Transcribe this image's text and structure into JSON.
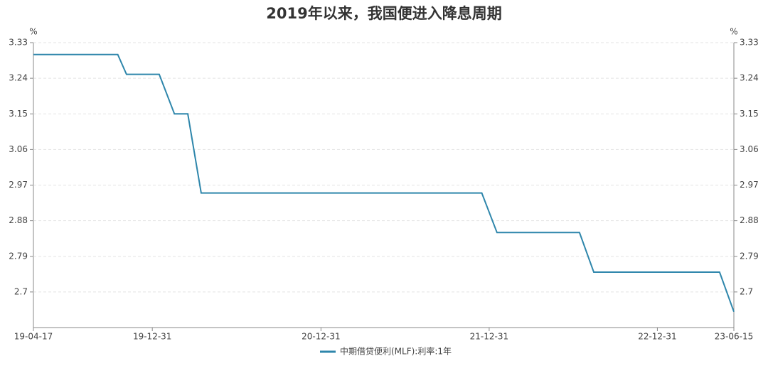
{
  "chart_data": {
    "type": "line",
    "title": "2019年以来，我国便进入降息周期",
    "y_label": "%",
    "y2_label": "%",
    "x": [
      "2019-04-17",
      "2019-10-17",
      "2019-11-05",
      "2020-01-15",
      "2020-02-17",
      "2020-03-17",
      "2020-04-15",
      "2021-12-15",
      "2022-01-17",
      "2022-07-15",
      "2022-08-15",
      "2023-05-15",
      "2023-06-15"
    ],
    "series": [
      {
        "name": "中期借贷便利(MLF):利率:1年",
        "color": "#2e86ab",
        "values": [
          3.3,
          3.3,
          3.25,
          3.25,
          3.15,
          3.15,
          2.95,
          2.95,
          2.85,
          2.85,
          2.75,
          2.75,
          2.65
        ]
      }
    ],
    "xlim": [
      "2019-04-17",
      "2023-06-15"
    ],
    "xticks": [
      {
        "value": "2019-04-17",
        "label": "19-04-17"
      },
      {
        "value": "2019-12-31",
        "label": "19-12-31"
      },
      {
        "value": "2020-12-31",
        "label": "20-12-31"
      },
      {
        "value": "2021-12-31",
        "label": "21-12-31"
      },
      {
        "value": "2022-12-31",
        "label": "22-12-31"
      },
      {
        "value": "2023-06-15",
        "label": "23-06-15"
      }
    ],
    "ylim": [
      2.61,
      3.33
    ],
    "yticks": [
      2.7,
      2.79,
      2.88,
      2.97,
      3.06,
      3.15,
      3.24,
      3.33
    ],
    "y2lim": [
      2.61,
      3.33
    ],
    "y2ticks": [
      2.7,
      2.79,
      2.88,
      2.97,
      3.06,
      3.15,
      3.24,
      3.33
    ],
    "grid": true,
    "legend": "bottom"
  }
}
